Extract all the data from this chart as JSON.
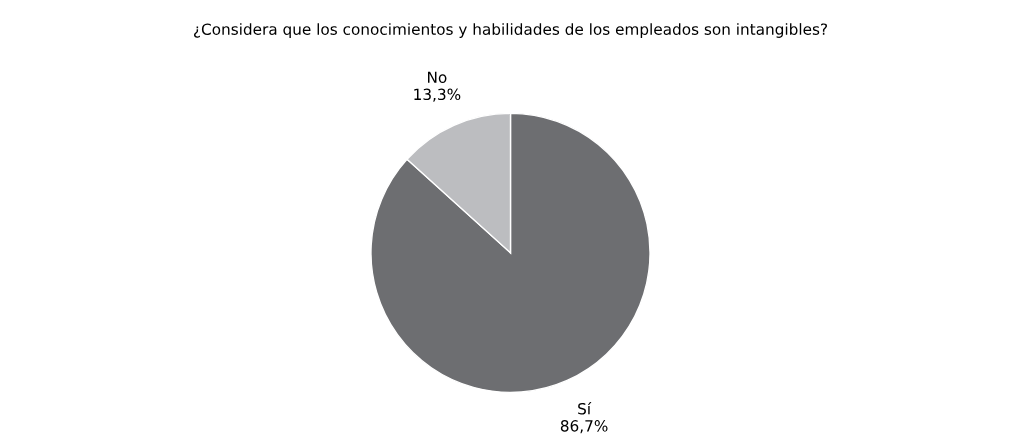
{
  "chart_data": {
    "type": "pie",
    "title": "¿Considera que los conocimientos y habilidades de los empleados son intangibles?",
    "categories": [
      "Sí",
      "No"
    ],
    "values": [
      86.7,
      13.3
    ],
    "value_labels": [
      "86,7%",
      "13,3%"
    ],
    "colors": [
      "#6d6e71",
      "#bcbdc0"
    ],
    "legend": false
  }
}
